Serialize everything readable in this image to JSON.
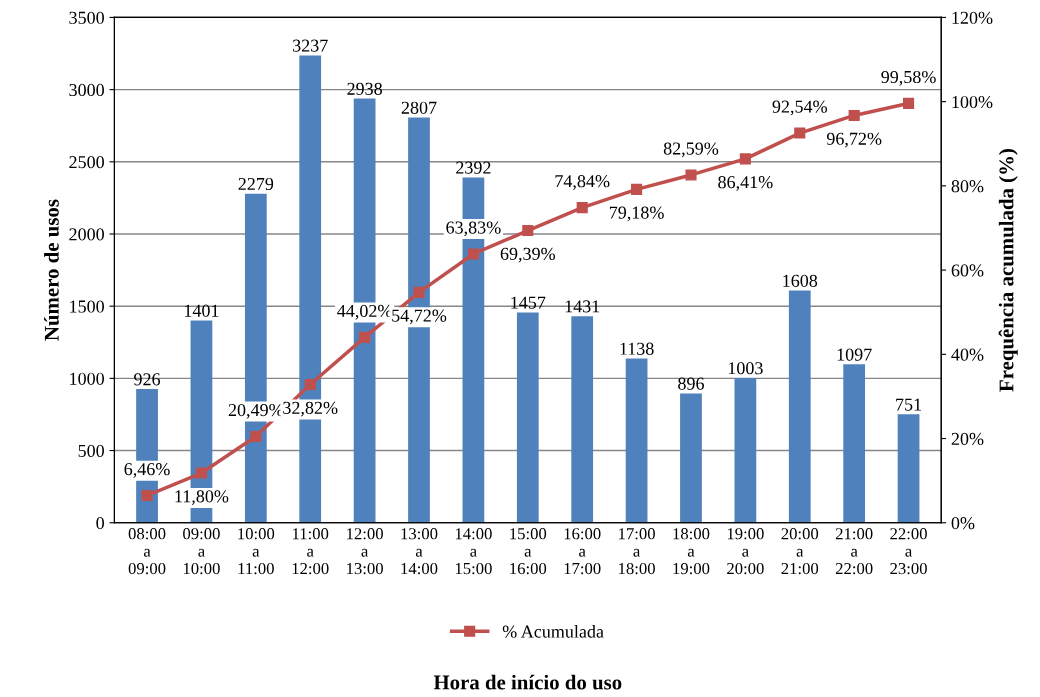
{
  "chart_data": {
    "type": "bar",
    "xlabel": "Hora de início do uso",
    "ylabel": "Número de usos",
    "y2label": "Frequência acumulada (%)",
    "categories": [
      "08:00\na\n09:00",
      "09:00\na\n10:00",
      "10:00\na\n11:00",
      "11:00\na\n12:00",
      "12:00\na\n13:00",
      "13:00\na\n14:00",
      "14:00\na\n15:00",
      "15:00\na\n16:00",
      "16:00\na\n17:00",
      "17:00\na\n18:00",
      "18:00\na\n19:00",
      "19:00\na\n20:00",
      "20:00\na\n21:00",
      "21:00\na\n22:00",
      "22:00\na\n23:00"
    ],
    "series": [
      {
        "color": "#4f81bd",
        "values": [
          926,
          1401,
          2279,
          3237,
          2938,
          2807,
          2392,
          1457,
          1431,
          1138,
          896,
          1003,
          1608,
          1097,
          751
        ]
      },
      {
        "type": "line",
        "axis": "y2",
        "name": "% Acumulada",
        "color": "#c0504d",
        "marker": "square",
        "values": [
          6.46,
          11.8,
          20.49,
          32.82,
          44.02,
          54.72,
          63.83,
          69.39,
          74.84,
          79.18,
          82.59,
          86.41,
          92.54,
          96.72,
          99.58
        ],
        "value_labels": [
          "6,46%",
          "11,80%",
          "20,49%",
          "32,82%",
          "44,02%",
          "54,72%",
          "63,83%",
          "69,39%",
          "74,84%",
          "79,18%",
          "82,59%",
          "86,41%",
          "92,54%",
          "96,72%",
          "99,58%"
        ]
      }
    ],
    "ylim": [
      0,
      3500
    ],
    "yticks": [
      0,
      500,
      1000,
      1500,
      2000,
      2500,
      3000,
      3500
    ],
    "y2lim": [
      0,
      120
    ],
    "y2ticks": [
      {
        "value": 0,
        "label": "0%"
      },
      {
        "value": 20,
        "label": "20%"
      },
      {
        "value": 40,
        "label": "40%"
      },
      {
        "value": 60,
        "label": "60%"
      },
      {
        "value": 80,
        "label": "80%"
      },
      {
        "value": 100,
        "label": "100%"
      },
      {
        "value": 120,
        "label": "120%"
      }
    ],
    "grid": "y",
    "legend": "bottom",
    "data_labels": true
  }
}
